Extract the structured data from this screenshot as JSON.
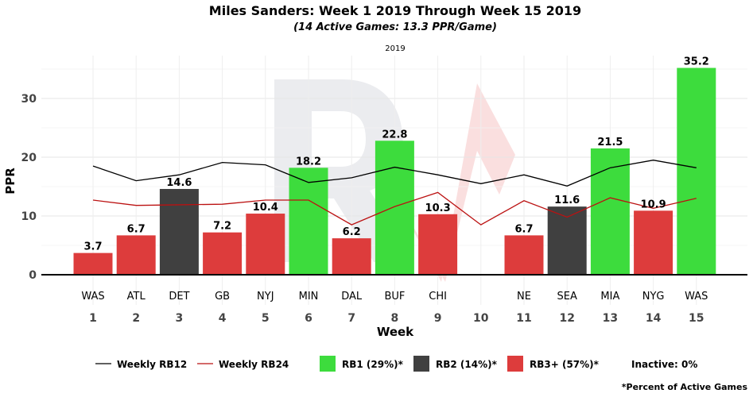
{
  "chart_data": {
    "type": "bar",
    "title": "Miles Sanders: Week 1 2019 Through Week 15 2019",
    "subtitle": "(14 Active Games: 13.3 PPR/Game)",
    "facet_label": "2019",
    "xlabel": "Week",
    "ylabel": "PPR",
    "ylim": [
      -5,
      37
    ],
    "yticks": [
      0,
      10,
      20,
      30
    ],
    "weeks": [
      "1",
      "2",
      "3",
      "4",
      "5",
      "6",
      "7",
      "8",
      "9",
      "10",
      "11",
      "12",
      "13",
      "14",
      "15"
    ],
    "opponents": [
      "WAS",
      "ATL",
      "DET",
      "GB",
      "NYJ",
      "MIN",
      "DAL",
      "BUF",
      "CHI",
      "",
      "NE",
      "SEA",
      "MIA",
      "NYG",
      "WAS"
    ],
    "values": [
      3.7,
      6.7,
      14.6,
      7.2,
      10.4,
      18.2,
      6.2,
      22.8,
      10.3,
      null,
      6.7,
      11.6,
      21.5,
      10.9,
      35.2
    ],
    "value_labels": [
      "3.7",
      "6.7",
      "14.6",
      "7.2",
      "10.4",
      "18.2",
      "6.2",
      "22.8",
      "10.3",
      "",
      "6.7",
      "11.6",
      "21.5",
      "10.9",
      "35.2"
    ],
    "tiers": [
      "RB3+",
      "RB3+",
      "RB2",
      "RB3+",
      "RB3+",
      "RB1",
      "RB3+",
      "RB1",
      "RB3+",
      "",
      "RB3+",
      "RB2",
      "RB1",
      "RB3+",
      "RB1"
    ],
    "series": [
      {
        "name": "Weekly RB12",
        "color": "#000000",
        "values": [
          18.5,
          16.0,
          17.0,
          19.1,
          18.7,
          15.7,
          16.5,
          18.3,
          17.0,
          15.5,
          17.0,
          15.1,
          18.2,
          19.5,
          18.2
        ]
      },
      {
        "name": "Weekly RB24",
        "color": "#bb1111",
        "values": [
          12.7,
          11.8,
          11.9,
          12.0,
          12.7,
          12.7,
          8.5,
          11.6,
          14.0,
          8.5,
          12.6,
          9.8,
          13.1,
          11.3,
          13.0
        ]
      }
    ],
    "colors": {
      "RB1": "#3ddc3d",
      "RB2": "#404040",
      "RB3+": "#dd3c3c"
    },
    "legend": {
      "lines": [
        "Weekly RB12",
        "Weekly RB24"
      ],
      "boxes": [
        {
          "tier": "RB1",
          "label": "RB1 (29%)*"
        },
        {
          "tier": "RB2",
          "label": "RB2 (14%)*"
        },
        {
          "tier": "RB3+",
          "label": "RB3+ (57%)*"
        }
      ],
      "inactive": "Inactive: 0%",
      "placement": "bottom"
    },
    "footnote": "*Percent of Active Games",
    "grid": true
  }
}
